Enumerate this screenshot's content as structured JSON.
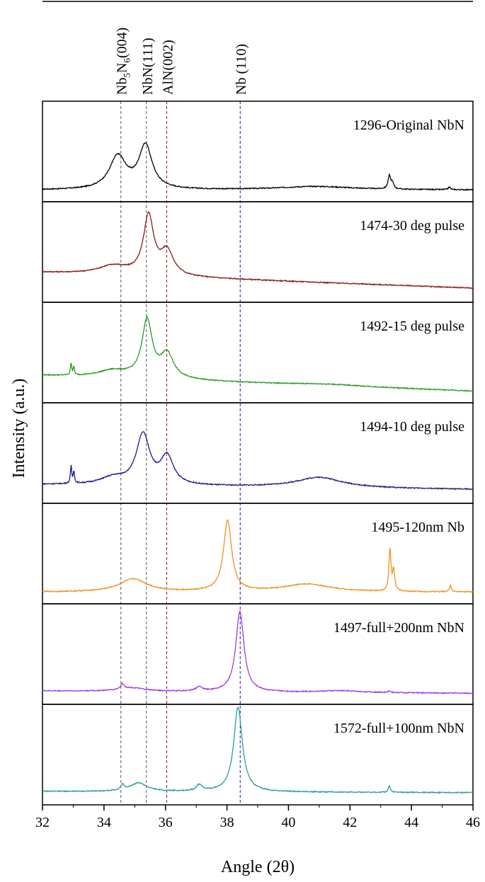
{
  "chart_data": {
    "type": "line",
    "xlabel": "Angle (2θ)",
    "ylabel": "Intensity (a.u.)",
    "xlim": [
      32,
      46
    ],
    "x_ticks": [
      32,
      34,
      36,
      38,
      40,
      42,
      44,
      46
    ],
    "x_tick_labels": [
      "32",
      "34",
      "36",
      "38",
      "40",
      "42",
      "44",
      "46"
    ],
    "grid": false,
    "reference_lines": [
      {
        "x": 34.55,
        "label": "Nb5N6(004)",
        "label_main": "Nb",
        "sub1": "5",
        "mid": "N",
        "sub2": "6",
        "tail": "(004)",
        "color": "#555555"
      },
      {
        "x": 35.38,
        "label": "NbN(111)",
        "color": "#555555"
      },
      {
        "x": 36.04,
        "label": "AlN(002)",
        "color": "#8b1a1a"
      },
      {
        "x": 38.43,
        "label": "Nb (110)",
        "color": "#1a1aa0"
      }
    ],
    "series": [
      {
        "name": "1296-Original NbN",
        "color": "#000000",
        "baseline": 0.07,
        "slope": 0.0,
        "peaks": [
          {
            "x": 34.45,
            "h": 0.38,
            "w": 0.33
          },
          {
            "x": 35.35,
            "h": 0.5,
            "w": 0.26
          },
          {
            "x": 40.9,
            "h": 0.04,
            "w": 1.5
          },
          {
            "x": 43.28,
            "h": 0.15,
            "w": 0.05
          },
          {
            "x": 43.38,
            "h": 0.07,
            "w": 0.05
          },
          {
            "x": 45.23,
            "h": 0.03,
            "w": 0.04
          }
        ]
      },
      {
        "name": "1474-30 deg pulse",
        "color": "#8b1a1a",
        "baseline": 0.28,
        "slope": -0.013,
        "peaks": [
          {
            "x": 34.3,
            "h": 0.1,
            "w": 0.6
          },
          {
            "x": 35.45,
            "h": 0.68,
            "w": 0.2
          },
          {
            "x": 36.05,
            "h": 0.28,
            "w": 0.25
          }
        ]
      },
      {
        "name": "1492-15 deg pulse",
        "color": "#2a9a2a",
        "baseline": 0.25,
        "slope": -0.013,
        "peaks": [
          {
            "x": 32.93,
            "h": 0.14,
            "w": 0.025
          },
          {
            "x": 33.02,
            "h": 0.09,
            "w": 0.025
          },
          {
            "x": 34.3,
            "h": 0.08,
            "w": 0.6
          },
          {
            "x": 35.4,
            "h": 0.66,
            "w": 0.2
          },
          {
            "x": 36.05,
            "h": 0.28,
            "w": 0.26
          },
          {
            "x": 41.3,
            "h": 0.02,
            "w": 1.5
          }
        ]
      },
      {
        "name": "1494-10 deg pulse",
        "color": "#1a1a8c",
        "baseline": 0.15,
        "slope": -0.004,
        "peaks": [
          {
            "x": 32.93,
            "h": 0.2,
            "w": 0.025
          },
          {
            "x": 33.02,
            "h": 0.14,
            "w": 0.025
          },
          {
            "x": 34.3,
            "h": 0.08,
            "w": 0.5
          },
          {
            "x": 35.27,
            "h": 0.58,
            "w": 0.26
          },
          {
            "x": 36.05,
            "h": 0.32,
            "w": 0.25
          },
          {
            "x": 41.0,
            "h": 0.12,
            "w": 0.9
          }
        ]
      },
      {
        "name": "1495-120nm Nb",
        "color": "#f0901c",
        "baseline": 0.07,
        "slope": 0.0,
        "peaks": [
          {
            "x": 34.95,
            "h": 0.15,
            "w": 0.55
          },
          {
            "x": 38.02,
            "h": 0.82,
            "w": 0.16
          },
          {
            "x": 40.6,
            "h": 0.09,
            "w": 0.95
          },
          {
            "x": 43.3,
            "h": 0.48,
            "w": 0.04
          },
          {
            "x": 43.42,
            "h": 0.24,
            "w": 0.04
          },
          {
            "x": 45.27,
            "h": 0.07,
            "w": 0.04
          }
        ]
      },
      {
        "name": "1497-full+200nm NbN",
        "color": "#9a3ee6",
        "baseline": 0.09,
        "slope": -0.002,
        "peaks": [
          {
            "x": 34.6,
            "h": 0.06,
            "w": 0.07
          },
          {
            "x": 34.9,
            "h": 0.04,
            "w": 0.5
          },
          {
            "x": 37.1,
            "h": 0.05,
            "w": 0.12
          },
          {
            "x": 38.42,
            "h": 0.93,
            "w": 0.16
          },
          {
            "x": 41.7,
            "h": 0.02,
            "w": 0.8
          },
          {
            "x": 43.28,
            "h": 0.02,
            "w": 0.04
          }
        ]
      },
      {
        "name": "1572-full+100nm NbN",
        "color": "#2a9e9e",
        "baseline": 0.09,
        "slope": -0.001,
        "peaks": [
          {
            "x": 34.6,
            "h": 0.06,
            "w": 0.07
          },
          {
            "x": 35.12,
            "h": 0.1,
            "w": 0.33
          },
          {
            "x": 37.1,
            "h": 0.07,
            "w": 0.12
          },
          {
            "x": 38.36,
            "h": 0.98,
            "w": 0.17
          },
          {
            "x": 43.28,
            "h": 0.07,
            "w": 0.04
          }
        ]
      }
    ]
  }
}
